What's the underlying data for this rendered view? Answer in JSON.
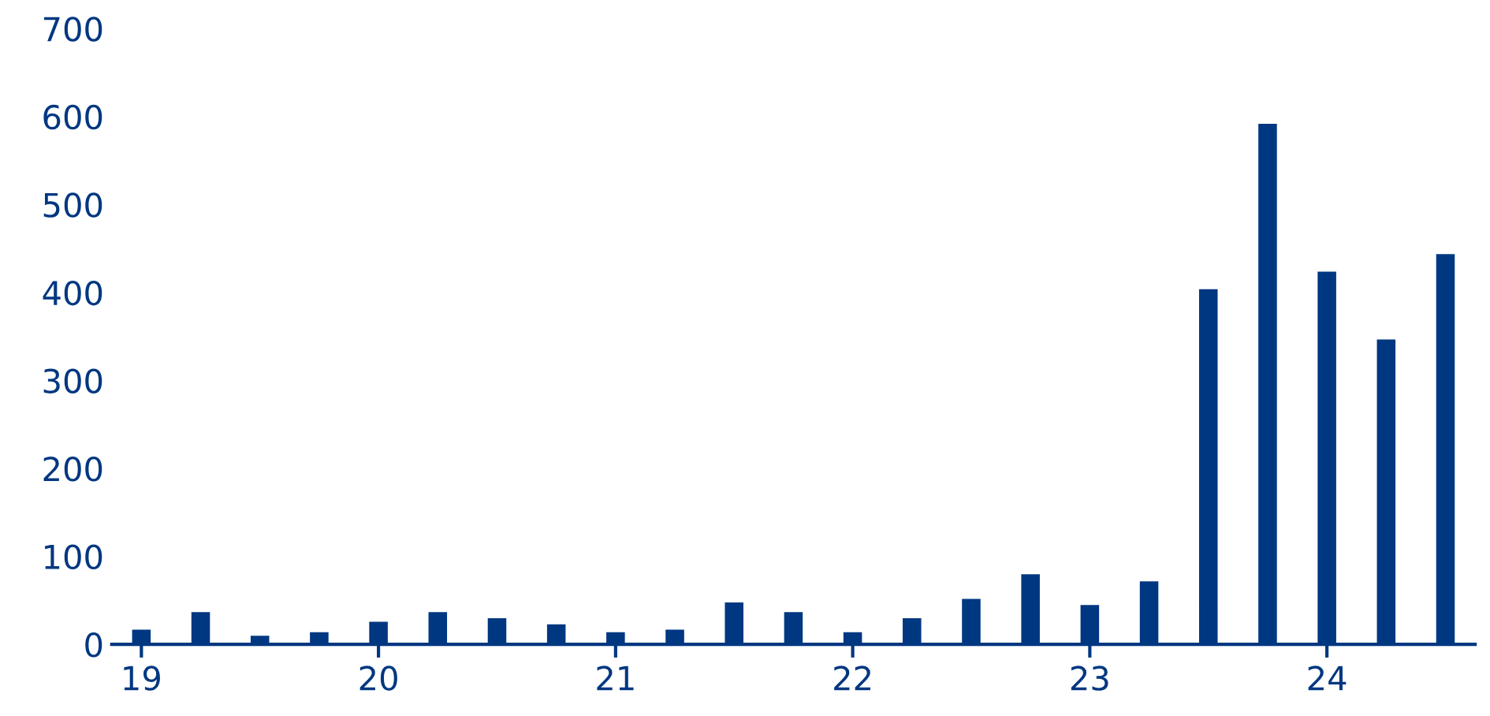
{
  "chart_data": {
    "type": "bar",
    "categories": [
      "19",
      null,
      null,
      null,
      "20",
      null,
      null,
      null,
      "21",
      null,
      null,
      null,
      "22",
      null,
      null,
      null,
      "23",
      null,
      null,
      null,
      "24",
      null,
      null
    ],
    "values": [
      18,
      38,
      11,
      15,
      27,
      38,
      31,
      24,
      15,
      18,
      49,
      38,
      15,
      31,
      53,
      81,
      46,
      73,
      405,
      593,
      425,
      348,
      445
    ],
    "color": "#003781",
    "ylim": [
      0,
      700
    ],
    "yticks": [
      0,
      100,
      200,
      300,
      400,
      500,
      600,
      700
    ],
    "grid": false
  }
}
